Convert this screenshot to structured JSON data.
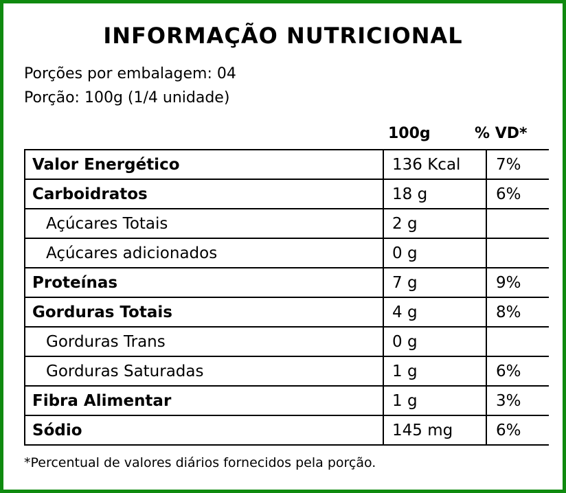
{
  "title": "INFORMAÇÃO NUTRICIONAL",
  "servings_per_package": "Porções por embalagem: 04",
  "serving_size": "Porção: 100g (1/4 unidade)",
  "columns": {
    "amount": "100g",
    "daily_value": "% VD*"
  },
  "rows": [
    {
      "name": "Valor Energético",
      "amount": "136 Kcal",
      "dv": "7%",
      "bold": true
    },
    {
      "name": "Carboidratos",
      "amount": "18 g",
      "dv": "6%",
      "bold": true
    },
    {
      "name": "Açúcares Totais",
      "amount": "2 g",
      "dv": "",
      "bold": false
    },
    {
      "name": "Açúcares adicionados",
      "amount": "0 g",
      "dv": "",
      "bold": false
    },
    {
      "name": "Proteínas",
      "amount": "7 g",
      "dv": "9%",
      "bold": true
    },
    {
      "name": "Gorduras Totais",
      "amount": "4 g",
      "dv": "8%",
      "bold": true
    },
    {
      "name": "Gorduras Trans",
      "amount": "0 g",
      "dv": "",
      "bold": false
    },
    {
      "name": "Gorduras Saturadas",
      "amount": "1 g",
      "dv": "6%",
      "bold": false
    },
    {
      "name": "Fibra Alimentar",
      "amount": "1 g",
      "dv": "3%",
      "bold": true
    },
    {
      "name": "Sódio",
      "amount": "145 mg",
      "dv": "6%",
      "bold": true
    }
  ],
  "footnote": "*Percentual de valores diários fornecidos pela porção.",
  "colors": {
    "border": "#0f8a0f"
  }
}
